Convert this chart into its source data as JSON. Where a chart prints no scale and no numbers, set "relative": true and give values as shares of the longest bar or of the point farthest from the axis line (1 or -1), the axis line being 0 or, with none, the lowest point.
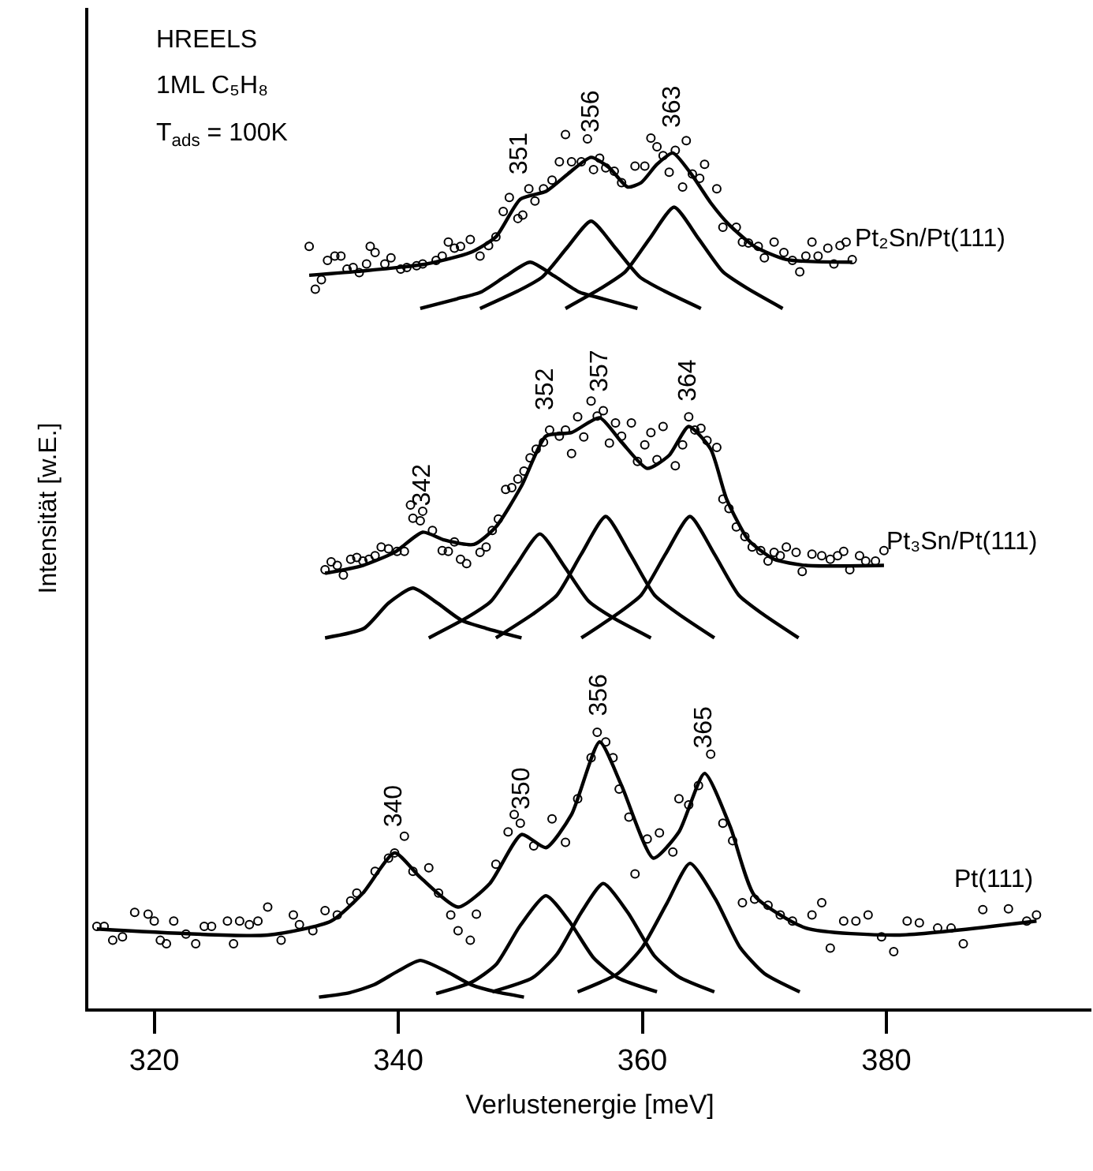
{
  "chart_data": {
    "type": "scatter",
    "relative": true,
    "xlabel": "Verlustenergie [meV]",
    "ylabel": "Intensität [w.E.]",
    "xlim": [
      314.6,
      396.8
    ],
    "xticks": [
      320,
      340,
      360,
      380
    ],
    "annotations": [
      "HREELS",
      "1ML C₅H₈",
      "T$_{ads}$ = 100K",
      {
        "text": "340",
        "x": 339.7,
        "y": 0.178
      },
      {
        "text": "350",
        "x": 350.1,
        "y": 0.199
      },
      {
        "text": "356",
        "x": 356.5,
        "y": 0.305
      },
      {
        "text": "365",
        "x": 365.1,
        "y": 0.269
      },
      {
        "text": "342",
        "x": 342.0,
        "y": 0.545
      },
      {
        "text": "352",
        "x": 352.1,
        "y": 0.655
      },
      {
        "text": "357",
        "x": 356.5,
        "y": 0.676
      },
      {
        "text": "364",
        "x": 363.8,
        "y": 0.666
      },
      {
        "text": "351",
        "x": 350.0,
        "y": 0.926
      },
      {
        "text": "356",
        "x": 355.8,
        "y": 0.974
      },
      {
        "text": "363",
        "x": 362.5,
        "y": 0.979
      }
    ],
    "series": [
      {
        "marker": "circle",
        "color": "#000000",
        "x": [
          315.3,
          315.9,
          316.6,
          317.4,
          318.4,
          319.5,
          320.0,
          320.5,
          321.0,
          321.6,
          322.6,
          323.4,
          324.1,
          324.7,
          326.0,
          326.5,
          327.0,
          327.8,
          328.5,
          329.3,
          330.4,
          331.4,
          331.9,
          333.0,
          334.0,
          335.0,
          336.1,
          336.6,
          338.1,
          339.2,
          339.7,
          340.5,
          341.2,
          342.5,
          343.3,
          344.3,
          344.9,
          345.9,
          346.4,
          348.0,
          349.0,
          349.5,
          350.0,
          351.1,
          352.6,
          353.7,
          354.7,
          355.8,
          356.3,
          357.0,
          357.6,
          358.1,
          358.9,
          359.4,
          360.4,
          361.4,
          362.5,
          363.0,
          363.8,
          364.6,
          365.6,
          366.6,
          367.4,
          368.2,
          369.2,
          370.3,
          371.3,
          372.3,
          373.9,
          374.7,
          375.4,
          376.5,
          377.5,
          378.5,
          379.6,
          380.6,
          381.7,
          382.7,
          384.2,
          385.3,
          386.3,
          387.9,
          390.0,
          391.5,
          392.3
        ],
        "values": [
          0.094,
          0.094,
          0.078,
          0.082,
          0.11,
          0.108,
          0.1,
          0.078,
          0.074,
          0.1,
          0.085,
          0.074,
          0.094,
          0.094,
          0.1,
          0.074,
          0.1,
          0.096,
          0.1,
          0.116,
          0.078,
          0.107,
          0.096,
          0.089,
          0.112,
          0.107,
          0.123,
          0.132,
          0.157,
          0.172,
          0.178,
          0.197,
          0.157,
          0.161,
          0.132,
          0.107,
          0.089,
          0.078,
          0.108,
          0.165,
          0.202,
          0.222,
          0.212,
          0.186,
          0.217,
          0.19,
          0.24,
          0.287,
          0.316,
          0.305,
          0.287,
          0.251,
          0.219,
          0.154,
          0.194,
          0.201,
          0.179,
          0.24,
          0.233,
          0.255,
          0.291,
          0.212,
          0.192,
          0.121,
          0.125,
          0.118,
          0.107,
          0.1,
          0.107,
          0.121,
          0.069,
          0.1,
          0.1,
          0.107,
          0.082,
          0.065,
          0.1,
          0.098,
          0.092,
          0.092,
          0.074,
          0.113,
          0.114,
          0.1,
          0.107
        ]
      },
      {
        "type": "line",
        "marker": "none",
        "color": "#000000",
        "name": "Pt(111)",
        "x": [
          315.3,
          329.3,
          334.5,
          337.1,
          339.7,
          341.8,
          344.9,
          347.5,
          350.1,
          352.1,
          354.2,
          356.5,
          358.3,
          360.9,
          363.0,
          365.1,
          367.2,
          369.2,
          373.4,
          381.1,
          392.3
        ],
        "values": [
          0.091,
          0.084,
          0.1,
          0.132,
          0.178,
          0.15,
          0.116,
          0.143,
          0.199,
          0.184,
          0.222,
          0.305,
          0.255,
          0.172,
          0.202,
          0.269,
          0.208,
          0.129,
          0.092,
          0.084,
          0.1
        ]
      },
      {
        "type": "line",
        "marker": "none",
        "color": "#000000",
        "x": [
          333.5,
          336.0,
          338.0,
          340.0,
          341.8,
          344.0,
          346.0,
          348.0,
          350.3
        ],
        "values": [
          0.013,
          0.018,
          0.027,
          0.043,
          0.055,
          0.042,
          0.027,
          0.019,
          0.013
        ]
      },
      {
        "type": "line",
        "marker": "none",
        "color": "#000000",
        "x": [
          343.1,
          346.0,
          348.0,
          350.0,
          352.1,
          354.0,
          356.0,
          358.0,
          361.2
        ],
        "values": [
          0.017,
          0.03,
          0.05,
          0.095,
          0.129,
          0.1,
          0.058,
          0.035,
          0.019
        ]
      },
      {
        "type": "line",
        "marker": "none",
        "color": "#000000",
        "x": [
          347.7,
          351.0,
          353.0,
          355.0,
          356.8,
          358.8,
          361.0,
          363.0,
          365.9
        ],
        "values": [
          0.019,
          0.035,
          0.062,
          0.11,
          0.143,
          0.11,
          0.06,
          0.036,
          0.019
        ]
      },
      {
        "type": "line",
        "marker": "none",
        "color": "#000000",
        "x": [
          354.7,
          358.0,
          360.0,
          362.0,
          363.9,
          366.0,
          368.0,
          370.0,
          372.9
        ],
        "values": [
          0.019,
          0.04,
          0.07,
          0.12,
          0.166,
          0.125,
          0.07,
          0.04,
          0.019
        ]
      },
      {
        "marker": "circle",
        "color": "#000000",
        "x": [
          334.0,
          334.5,
          335.0,
          335.5,
          336.1,
          336.6,
          337.1,
          337.6,
          338.1,
          338.6,
          339.2,
          339.9,
          340.5,
          341.0,
          341.2,
          341.8,
          342.0,
          342.8,
          343.6,
          344.1,
          344.6,
          345.1,
          345.6,
          346.7,
          347.2,
          347.7,
          348.2,
          348.8,
          349.3,
          349.8,
          350.3,
          350.8,
          351.3,
          351.9,
          352.4,
          353.2,
          353.7,
          354.2,
          354.7,
          355.2,
          355.8,
          356.3,
          356.8,
          357.3,
          357.8,
          358.3,
          359.1,
          359.6,
          360.2,
          360.7,
          361.2,
          361.7,
          362.7,
          363.3,
          363.8,
          364.3,
          364.8,
          365.3,
          366.1,
          366.6,
          367.1,
          367.7,
          368.4,
          369.0,
          369.7,
          370.3,
          370.8,
          371.3,
          371.8,
          372.6,
          373.1,
          373.9,
          374.7,
          375.4,
          376.0,
          376.5,
          377.0,
          377.8,
          378.3,
          379.1,
          379.8
        ],
        "values": [
          0.502,
          0.511,
          0.507,
          0.496,
          0.514,
          0.516,
          0.512,
          0.514,
          0.518,
          0.528,
          0.526,
          0.523,
          0.523,
          0.576,
          0.561,
          0.558,
          0.569,
          0.547,
          0.524,
          0.523,
          0.534,
          0.514,
          0.509,
          0.522,
          0.528,
          0.547,
          0.56,
          0.594,
          0.596,
          0.606,
          0.615,
          0.63,
          0.64,
          0.648,
          0.662,
          0.655,
          0.662,
          0.635,
          0.677,
          0.654,
          0.695,
          0.678,
          0.684,
          0.647,
          0.67,
          0.655,
          0.67,
          0.626,
          0.645,
          0.659,
          0.628,
          0.666,
          0.621,
          0.645,
          0.677,
          0.662,
          0.664,
          0.65,
          0.642,
          0.583,
          0.572,
          0.551,
          0.54,
          0.528,
          0.524,
          0.512,
          0.522,
          0.518,
          0.528,
          0.522,
          0.5,
          0.52,
          0.518,
          0.514,
          0.518,
          0.523,
          0.502,
          0.518,
          0.512,
          0.512,
          0.524
        ]
      },
      {
        "type": "line",
        "marker": "none",
        "color": "#000000",
        "name": "Pt₃Sn/Pt(111)",
        "x": [
          334.0,
          337.1,
          339.7,
          342.0,
          343.8,
          346.2,
          348.0,
          350.1,
          352.1,
          354.2,
          356.5,
          358.3,
          360.4,
          362.2,
          363.8,
          365.6,
          366.9,
          368.7,
          370.8,
          373.4,
          379.8
        ],
        "values": [
          0.498,
          0.507,
          0.522,
          0.545,
          0.536,
          0.531,
          0.551,
          0.598,
          0.655,
          0.659,
          0.676,
          0.648,
          0.618,
          0.633,
          0.666,
          0.64,
          0.583,
          0.536,
          0.514,
          0.507,
          0.507
        ]
      },
      {
        "type": "line",
        "marker": "none",
        "color": "#000000",
        "x": [
          334.0,
          337.2,
          339.2,
          341.2,
          343.2,
          345.2,
          347.2,
          350.1
        ],
        "values": [
          0.424,
          0.435,
          0.464,
          0.481,
          0.464,
          0.444,
          0.435,
          0.424
        ]
      },
      {
        "type": "line",
        "marker": "none",
        "color": "#000000",
        "x": [
          342.5,
          345.6,
          347.6,
          349.6,
          351.6,
          353.6,
          355.6,
          357.6,
          360.7
        ],
        "values": [
          0.424,
          0.447,
          0.466,
          0.506,
          0.543,
          0.506,
          0.466,
          0.447,
          0.424
        ]
      },
      {
        "type": "line",
        "marker": "none",
        "color": "#000000",
        "x": [
          348.0,
          351.0,
          353.0,
          355.0,
          357.0,
          359.0,
          361.0,
          363.0,
          365.9
        ],
        "values": [
          0.424,
          0.451,
          0.473,
          0.52,
          0.563,
          0.52,
          0.473,
          0.451,
          0.424
        ]
      },
      {
        "type": "line",
        "marker": "none",
        "color": "#000000",
        "x": [
          355.0,
          357.9,
          359.9,
          361.9,
          363.9,
          365.9,
          367.9,
          369.9,
          372.8
        ],
        "values": [
          0.424,
          0.451,
          0.473,
          0.52,
          0.563,
          0.52,
          0.473,
          0.451,
          0.424
        ]
      },
      {
        "marker": "circle",
        "color": "#000000",
        "x": [
          332.7,
          333.2,
          333.7,
          334.2,
          334.8,
          335.3,
          335.8,
          336.3,
          336.8,
          337.4,
          337.7,
          338.1,
          338.9,
          339.4,
          340.2,
          340.7,
          341.5,
          342.0,
          343.1,
          343.6,
          344.1,
          344.6,
          345.1,
          345.9,
          346.7,
          347.4,
          348.0,
          348.6,
          349.1,
          349.8,
          350.2,
          350.7,
          351.2,
          351.9,
          352.6,
          353.2,
          353.7,
          354.2,
          355.0,
          355.5,
          356.0,
          356.5,
          357.0,
          357.7,
          358.3,
          359.4,
          360.2,
          360.7,
          361.2,
          361.7,
          362.2,
          362.7,
          363.3,
          363.6,
          364.1,
          364.7,
          365.1,
          366.1,
          366.6,
          367.7,
          368.2,
          368.7,
          369.5,
          370.0,
          370.8,
          371.6,
          372.3,
          372.9,
          373.4,
          373.9,
          374.4,
          375.2,
          375.7,
          376.2,
          376.7,
          377.2
        ],
        "values": [
          0.872,
          0.823,
          0.834,
          0.856,
          0.861,
          0.861,
          0.846,
          0.848,
          0.842,
          0.852,
          0.872,
          0.865,
          0.852,
          0.859,
          0.846,
          0.848,
          0.85,
          0.852,
          0.856,
          0.861,
          0.877,
          0.87,
          0.872,
          0.88,
          0.861,
          0.873,
          0.883,
          0.912,
          0.928,
          0.904,
          0.908,
          0.938,
          0.924,
          0.938,
          0.948,
          0.969,
          1.0,
          0.969,
          0.969,
          0.995,
          0.96,
          0.973,
          0.962,
          0.958,
          0.945,
          0.964,
          0.964,
          0.996,
          0.986,
          0.976,
          0.957,
          0.982,
          0.94,
          0.993,
          0.955,
          0.95,
          0.966,
          0.938,
          0.894,
          0.894,
          0.877,
          0.876,
          0.872,
          0.859,
          0.877,
          0.865,
          0.856,
          0.843,
          0.861,
          0.877,
          0.861,
          0.87,
          0.852,
          0.873,
          0.877,
          0.857
        ]
      },
      {
        "type": "line",
        "marker": "none",
        "color": "#000000",
        "name": "Pt₂Sn/Pt(111)",
        "x": [
          332.7,
          337.1,
          342.3,
          345.9,
          348.0,
          350.0,
          352.1,
          353.9,
          355.8,
          357.3,
          358.8,
          359.9,
          361.2,
          362.5,
          364.0,
          365.6,
          367.1,
          369.2,
          371.8,
          377.2
        ],
        "values": [
          0.839,
          0.844,
          0.852,
          0.865,
          0.883,
          0.926,
          0.935,
          0.955,
          0.974,
          0.962,
          0.94,
          0.945,
          0.966,
          0.979,
          0.955,
          0.922,
          0.897,
          0.872,
          0.857,
          0.854
        ]
      },
      {
        "type": "line",
        "marker": "none",
        "color": "#000000",
        "x": [
          341.8,
          344.8,
          346.8,
          348.8,
          350.8,
          352.8,
          354.8,
          356.8,
          359.6
        ],
        "values": [
          0.801,
          0.812,
          0.82,
          0.838,
          0.854,
          0.838,
          0.82,
          0.812,
          0.801
        ]
      },
      {
        "type": "line",
        "marker": "none",
        "color": "#000000",
        "x": [
          346.7,
          349.8,
          351.8,
          353.8,
          355.8,
          357.8,
          359.8,
          361.8,
          364.8
        ],
        "values": [
          0.801,
          0.821,
          0.837,
          0.87,
          0.901,
          0.87,
          0.837,
          0.821,
          0.801
        ]
      },
      {
        "type": "line",
        "marker": "none",
        "color": "#000000",
        "x": [
          353.7,
          356.6,
          358.6,
          360.6,
          362.6,
          364.6,
          366.6,
          368.6,
          371.5
        ],
        "values": [
          0.801,
          0.824,
          0.843,
          0.881,
          0.917,
          0.881,
          0.843,
          0.824,
          0.801
        ]
      }
    ]
  }
}
